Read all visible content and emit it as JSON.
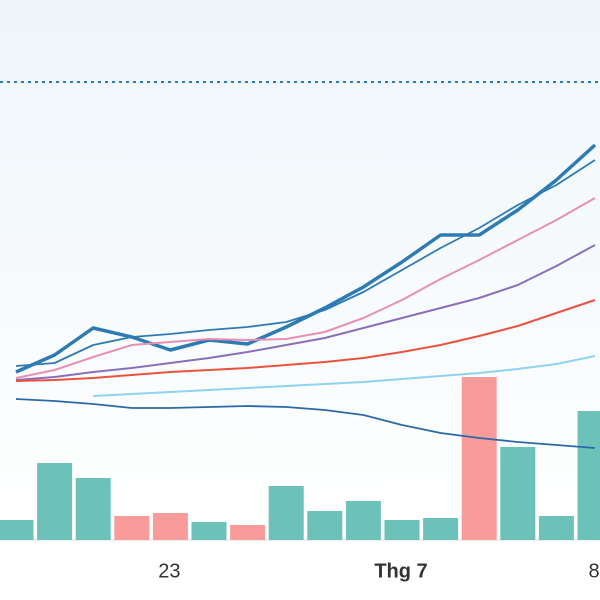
{
  "chart_data": {
    "type": "line",
    "categories": [
      null,
      null,
      null,
      null,
      "23",
      null,
      null,
      null,
      null,
      null,
      "Thg 7",
      null,
      null,
      null,
      null,
      "8"
    ],
    "bold_categories": [
      "Thg 7"
    ],
    "ylim": [
      0,
      600
    ],
    "reference_line": {
      "value": 518,
      "color": "#2e7bb4"
    },
    "series": [
      {
        "color": "#2e7bb4",
        "width": 3.5,
        "values": [
          228,
          245,
          272,
          263,
          250,
          260,
          256,
          273,
          292,
          313,
          338,
          365,
          365,
          390,
          420,
          455
        ]
      },
      {
        "color": "#2e7bb4",
        "width": 1.8,
        "values": [
          234,
          237,
          255,
          263,
          266,
          270,
          273,
          278,
          290,
          308,
          330,
          352,
          372,
          395,
          415,
          440
        ]
      },
      {
        "color": "#e88fb4",
        "width": 2,
        "values": [
          222,
          230,
          243,
          255,
          258,
          261,
          260,
          261,
          268,
          282,
          300,
          321,
          340,
          360,
          380,
          402
        ]
      },
      {
        "color": "#8a6fba",
        "width": 2,
        "values": [
          220,
          223,
          228,
          232,
          237,
          242,
          248,
          255,
          262,
          272,
          282,
          292,
          302,
          315,
          334,
          355
        ]
      },
      {
        "color": "#e8533f",
        "width": 2,
        "values": [
          219,
          220,
          222,
          225,
          228,
          230,
          232,
          235,
          238,
          242,
          248,
          255,
          264,
          274,
          287,
          300
        ]
      },
      {
        "color": "#8fd3f0",
        "width": 2,
        "values": [
          null,
          null,
          204,
          206,
          208,
          210,
          212,
          214,
          216,
          218,
          221,
          224,
          227,
          231,
          236,
          244
        ]
      },
      {
        "color": "#2a6aa8",
        "width": 1.8,
        "values": [
          201,
          199,
          196,
          192,
          192,
          193,
          194,
          193,
          190,
          185,
          175,
          167,
          162,
          158,
          155,
          152
        ]
      }
    ],
    "volume": {
      "type": "bar",
      "ylim": [
        0,
        300
      ],
      "values": [
        20,
        77,
        62,
        24,
        27,
        18,
        15,
        54,
        29,
        39,
        20,
        22,
        163,
        93,
        24,
        129
      ],
      "colors": [
        "#6cc2b8",
        "#6cc2b8",
        "#6cc2b8",
        "#f99b9b",
        "#f99b9b",
        "#6cc2b8",
        "#f99b9b",
        "#6cc2b8",
        "#6cc2b8",
        "#6cc2b8",
        "#6cc2b8",
        "#6cc2b8",
        "#f99b9b",
        "#6cc2b8",
        "#6cc2b8",
        "#6cc2b8"
      ]
    }
  }
}
